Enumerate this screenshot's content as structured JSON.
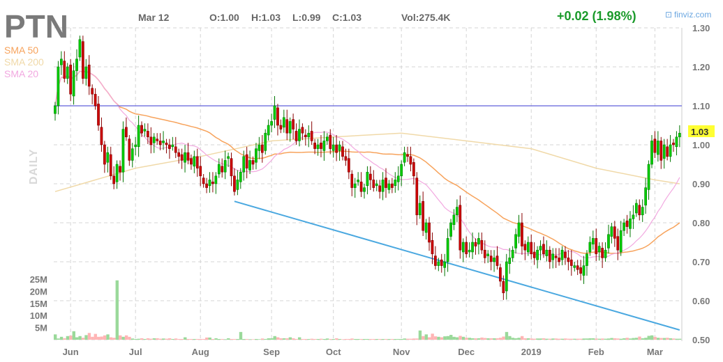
{
  "header": {
    "ticker": "PTN",
    "date": "Mar 12",
    "open": "O:1.00",
    "high": "H:1.03",
    "low": "L:0.99",
    "close": "C:1.03",
    "volume": "Vol:275.4K",
    "change": "+0.02 (1.98%)",
    "brand": "finviz.com",
    "timeframe": "DAILY"
  },
  "legend": [
    {
      "label": "SMA 50",
      "color": "#f7a35c"
    },
    {
      "label": "SMA 200",
      "color": "#f0d9a8"
    },
    {
      "label": "SMA 20",
      "color": "#f2a8e0"
    }
  ],
  "colors": {
    "up": "#00cc00",
    "down": "#cc0000",
    "vol_up": "#9ad99a",
    "vol_down": "#ffb5b5",
    "resistance": "#7b7be0",
    "trendline": "#4aa8e0",
    "price_tag": "#ffff33"
  },
  "chart_data": {
    "type": "candlestick",
    "title": "PTN",
    "price_axis": {
      "ticks": [
        "1.30",
        "1.20",
        "1.10",
        "1.00",
        "0.90",
        "0.80",
        "0.70",
        "0.60",
        "0.50"
      ],
      "ylim": [
        0.5,
        1.3
      ]
    },
    "volume_axis": {
      "ticks": [
        "25M",
        "20M",
        "15M",
        "10M",
        "5M"
      ],
      "ylim_millions": [
        0,
        25
      ]
    },
    "x_ticks": [
      {
        "label": "Jun",
        "index": 5
      },
      {
        "label": "Jul",
        "index": 26
      },
      {
        "label": "Aug",
        "index": 47
      },
      {
        "label": "Sep",
        "index": 70
      },
      {
        "label": "Oct",
        "index": 90
      },
      {
        "label": "Nov",
        "index": 112
      },
      {
        "label": "Dec",
        "index": 133
      },
      {
        "label": "2019",
        "index": 154
      },
      {
        "label": "Feb",
        "index": 175
      },
      {
        "label": "Mar",
        "index": 194
      }
    ],
    "close": [
      1.1,
      1.2,
      1.22,
      1.17,
      1.2,
      1.13,
      1.19,
      1.22,
      1.27,
      1.17,
      1.2,
      1.15,
      1.13,
      1.1,
      1.05,
      1.0,
      0.95,
      0.98,
      0.92,
      0.9,
      0.95,
      0.93,
      1.04,
      1.02,
      0.96,
      0.99,
      1.0,
      1.05,
      1.03,
      1.04,
      1.02,
      1.0,
      1.02,
      1.01,
      1.0,
      1.01,
      1.0,
      0.99,
      1.0,
      0.98,
      0.97,
      0.96,
      0.98,
      0.96,
      0.95,
      0.97,
      0.94,
      0.92,
      0.9,
      0.89,
      0.91,
      0.9,
      0.92,
      0.95,
      0.93,
      0.96,
      0.97,
      0.92,
      0.88,
      0.91,
      0.93,
      0.97,
      0.94,
      0.96,
      0.95,
      0.99,
      1.0,
      0.98,
      1.03,
      1.05,
      1.06,
      1.1,
      1.05,
      1.04,
      1.07,
      1.03,
      1.06,
      1.04,
      1.01,
      1.04,
      1.03,
      1.02,
      1.03,
      1.01,
      0.99,
      1.0,
      0.99,
      1.01,
      1.02,
      0.99,
      1.0,
      0.98,
      1.0,
      0.97,
      0.96,
      0.93,
      0.89,
      0.9,
      0.91,
      0.88,
      0.89,
      0.93,
      0.91,
      0.89,
      0.9,
      0.88,
      0.91,
      0.89,
      0.9,
      0.89,
      0.91,
      0.92,
      0.95,
      0.98,
      0.97,
      0.95,
      0.92,
      0.82,
      0.85,
      0.78,
      0.8,
      0.75,
      0.72,
      0.69,
      0.7,
      0.69,
      0.7,
      0.76,
      0.8,
      0.82,
      0.84,
      0.73,
      0.75,
      0.72,
      0.73,
      0.75,
      0.74,
      0.76,
      0.73,
      0.71,
      0.72,
      0.7,
      0.71,
      0.69,
      0.65,
      0.62,
      0.7,
      0.71,
      0.73,
      0.77,
      0.8,
      0.74,
      0.73,
      0.75,
      0.72,
      0.71,
      0.73,
      0.74,
      0.72,
      0.73,
      0.7,
      0.72,
      0.71,
      0.7,
      0.73,
      0.71,
      0.7,
      0.69,
      0.69,
      0.68,
      0.67,
      0.69,
      0.72,
      0.75,
      0.76,
      0.72,
      0.74,
      0.71,
      0.73,
      0.77,
      0.79,
      0.76,
      0.73,
      0.78,
      0.8,
      0.79,
      0.81,
      0.82,
      0.85,
      0.82,
      0.84,
      0.89,
      0.95,
      1.01,
      0.98,
      1.01,
      0.96,
      1.0,
      0.97,
      1.0,
      1.0,
      1.02,
      1.03
    ],
    "volume_millions": [
      2.2,
      0.5,
      1.2,
      0.6,
      1.5,
      1.7,
      3.5,
      1.0,
      1.5,
      0.8,
      1.9,
      2.8,
      1.2,
      2.4,
      1.2,
      1.3,
      1.8,
      2.2,
      1.0,
      0.8,
      24.5,
      1.8,
      1.2,
      1.8,
      1.2,
      0.5,
      0.3,
      0.4,
      0.6,
      0.3,
      0.6,
      0.4,
      0.6,
      0.6,
      0.4,
      0.5,
      0.4,
      0.6,
      0.3,
      0.5,
      0.3,
      0.3,
      1.0,
      0.3,
      0.3,
      0.3,
      0.3,
      0.3,
      0.3,
      0.9,
      0.9,
      0.3,
      0.6,
      0.3,
      0.3,
      0.2,
      0.6,
      0.3,
      0.3,
      0.3,
      3.2,
      0.3,
      0.3,
      0.2,
      0.2,
      0.3,
      0.2,
      0.5,
      0.3,
      0.6,
      0.6,
      1.5,
      1.0,
      0.6,
      0.6,
      0.6,
      1.0,
      0.6,
      0.3,
      1.0,
      0.3,
      0.3,
      0.3,
      0.4,
      0.3,
      0.3,
      0.4,
      0.3,
      0.5,
      0.3,
      0.3,
      0.6,
      0.3,
      0.2,
      0.3,
      0.3,
      0.5,
      0.3,
      0.3,
      0.3,
      0.3,
      0.3,
      0.3,
      0.3,
      0.3,
      0.3,
      0.3,
      0.3,
      0.3,
      0.3,
      0.3,
      0.3,
      0.3,
      0.5,
      0.4,
      0.4,
      0.5,
      0.5,
      3.8,
      1.5,
      2.2,
      1.0,
      2.5,
      1.4,
      1.2,
      1.0,
      1.4,
      1.5,
      2.0,
      1.2,
      1.0,
      1.6,
      1.2,
      0.8,
      0.8,
      0.6,
      0.6,
      0.6,
      0.9,
      0.7,
      0.6,
      0.6,
      0.6,
      0.6,
      0.8,
      1.3,
      3.2,
      1.5,
      0.8,
      0.6,
      0.8,
      1.5,
      0.6,
      0.6,
      0.5,
      0.4,
      0.5,
      0.5,
      0.6,
      0.4,
      0.4,
      0.5,
      0.5,
      0.4,
      0.4,
      0.5,
      0.4,
      0.4,
      0.4,
      0.4,
      0.4,
      0.5,
      0.5,
      0.6,
      0.6,
      0.5,
      0.4,
      0.5,
      0.4,
      0.5,
      0.7,
      0.6,
      0.5,
      0.4,
      0.6,
      0.8,
      0.5,
      0.7,
      0.8,
      1.3,
      0.6,
      0.8,
      1.6,
      1.8,
      1.2,
      0.8,
      0.7,
      0.7,
      0.8,
      0.6,
      0.5,
      0.4,
      0.4,
      0.3
    ],
    "sma200": [
      [
        0,
        0.88
      ],
      [
        26,
        0.94
      ],
      [
        47,
        0.97
      ],
      [
        70,
        1.01
      ],
      [
        90,
        1.02
      ],
      [
        112,
        1.03
      ],
      [
        133,
        1.01
      ],
      [
        154,
        0.99
      ],
      [
        175,
        0.94
      ],
      [
        194,
        0.91
      ],
      [
        202,
        0.9
      ]
    ],
    "resistance_level": 1.1,
    "trendline": [
      [
        58,
        0.855
      ],
      [
        202,
        0.525
      ]
    ],
    "last_price": "1.03"
  }
}
